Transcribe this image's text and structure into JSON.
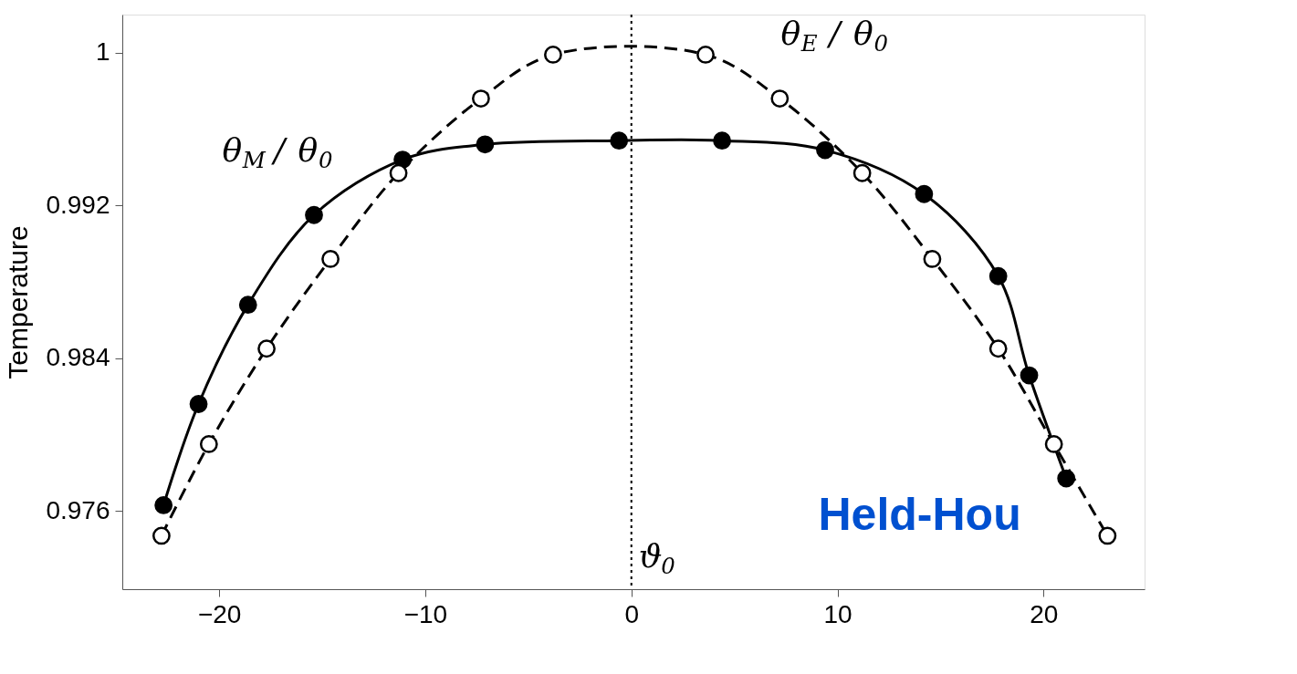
{
  "chart_data": {
    "type": "line",
    "ylabel": "Temperature",
    "xlim": [
      -24.7,
      24.9
    ],
    "ylim": [
      0.9719,
      1.002
    ],
    "xticks": [
      -20,
      -10,
      0,
      10,
      20
    ],
    "yticks": [
      0.976,
      0.984,
      0.992,
      {
        "value": 1,
        "label": "1"
      }
    ],
    "grid": false,
    "legend": false,
    "marker": "circle",
    "series": [
      {
        "name": "θ$_{M}$ / θ$_{0}$",
        "color": "#000000",
        "line_style": "solid",
        "x": [
          -22.7,
          -21.0,
          -18.6,
          -15.4,
          -11.1,
          -7.1,
          -0.6,
          4.4,
          9.4,
          14.2,
          17.8,
          19.3,
          21.1
        ],
        "values": [
          0.9763,
          0.9816,
          0.9868,
          0.9915,
          0.9944,
          0.9952,
          0.9954,
          0.9954,
          0.9949,
          0.9926,
          0.9883,
          0.9831,
          0.9777
        ]
      },
      {
        "name": "θ$_{E}$ / θ$_{0}$",
        "color": "#000000",
        "line_style": "dashed",
        "x": [
          -22.8,
          -20.5,
          -17.7,
          -14.6,
          -11.3,
          -7.3,
          -3.8,
          3.6,
          7.2,
          11.2,
          14.6,
          17.8,
          20.5,
          23.1
        ],
        "values": [
          0.9747,
          0.9795,
          0.9845,
          0.9892,
          0.9937,
          0.9976,
          0.9999,
          0.9999,
          0.9976,
          0.9937,
          0.9892,
          0.9845,
          0.9795,
          0.9747
        ]
      }
    ],
    "ref_lines": [
      {
        "axis": "x",
        "value": 0,
        "label": "ϑ$_{0}$",
        "line_style": "dotted",
        "color": "#000000"
      }
    ],
    "annotations": [
      "Held-Hou"
    ]
  }
}
